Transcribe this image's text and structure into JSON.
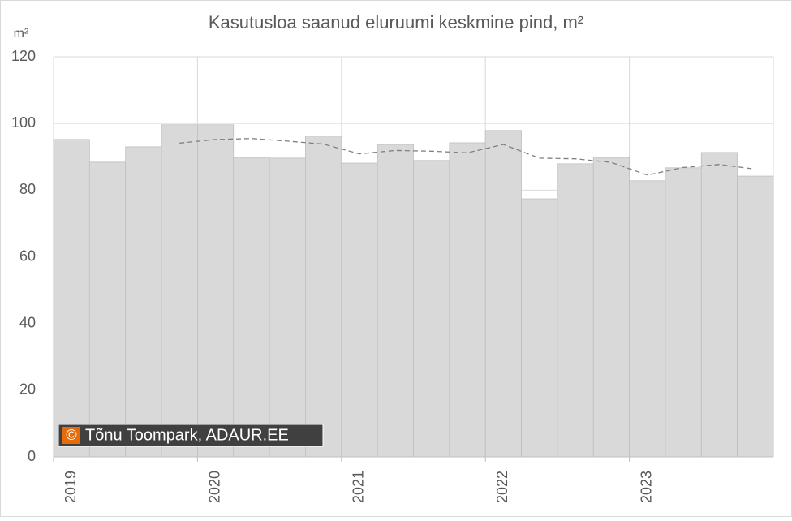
{
  "chart_data": {
    "type": "bar",
    "title": "Kasutusloa saanud eluruumi keskmine pind, m²",
    "ylabel": "m²",
    "watermark": {
      "symbol": "©",
      "text": "Tõnu Toompark, ADAUR.EE"
    },
    "categories": [
      "2019",
      null,
      null,
      null,
      "2020",
      null,
      null,
      null,
      "2021",
      null,
      null,
      null,
      "2022",
      null,
      null,
      null,
      "2023",
      null,
      null,
      null
    ],
    "series": [
      {
        "type": "bar",
        "color": "#d9d9d9",
        "values": [
          95.2,
          88.4,
          93.0,
          99.6,
          99.6,
          89.8,
          89.6,
          96.2,
          88.1,
          93.7,
          88.9,
          94.2,
          97.9,
          77.4,
          87.9,
          89.8,
          82.8,
          86.7,
          91.3,
          84.2
        ]
      },
      {
        "type": "line",
        "color": "#808080",
        "dashed": true,
        "values": [
          null,
          null,
          null,
          94.1,
          95.2,
          95.5,
          94.7,
          93.8,
          90.9,
          91.9,
          91.7,
          91.2,
          93.7,
          89.6,
          89.4,
          88.3,
          84.5,
          86.8,
          87.7,
          86.3
        ]
      }
    ],
    "ylim": [
      0,
      120
    ],
    "yticks": [
      0,
      20,
      40,
      60,
      80,
      100,
      120
    ],
    "grid": true
  }
}
